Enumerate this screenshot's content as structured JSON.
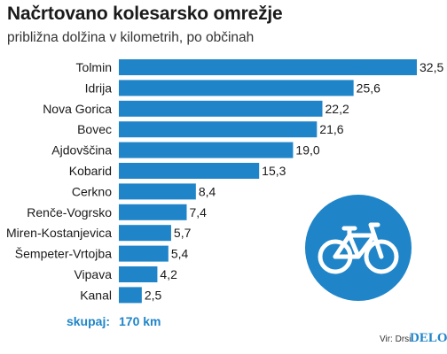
{
  "title": "Načrtovano kolesarsko omrežje",
  "subtitle": "približna dolžina v kilometrih, po občinah",
  "total": {
    "label": "skupaj:",
    "value": "170 km"
  },
  "source": "Vir: Drsi",
  "brand": "DELO",
  "icons": {
    "sign": "bicycle-icon"
  },
  "colors": {
    "bar": "#1f85c8",
    "accent": "#1f85c8",
    "text": "#1a1a1a"
  },
  "chart_data": {
    "type": "bar",
    "orientation": "horizontal",
    "categories": [
      "Tolmin",
      "Idrija",
      "Nova Gorica",
      "Bovec",
      "Ajdovščina",
      "Kobarid",
      "Cerkno",
      "Renče-Vogrsko",
      "Miren-Kostanjevica",
      "Šempeter-Vrtojba",
      "Vipava",
      "Kanal"
    ],
    "values": [
      32.5,
      25.6,
      22.2,
      21.6,
      19.0,
      15.3,
      8.4,
      7.4,
      5.7,
      5.4,
      4.2,
      2.5
    ],
    "value_labels": [
      "32,5",
      "25,6",
      "22,2",
      "21,6",
      "19,0",
      "15,3",
      "8,4",
      "7,4",
      "5,7",
      "5,4",
      "4,2",
      "2,5"
    ],
    "title": "Načrtovano kolesarsko omrežje",
    "subtitle": "približna dolžina v kilometrih, po občinah",
    "xlabel": "",
    "ylabel": "",
    "xlim": [
      0,
      32.5
    ],
    "grid": false,
    "legend": "none"
  }
}
